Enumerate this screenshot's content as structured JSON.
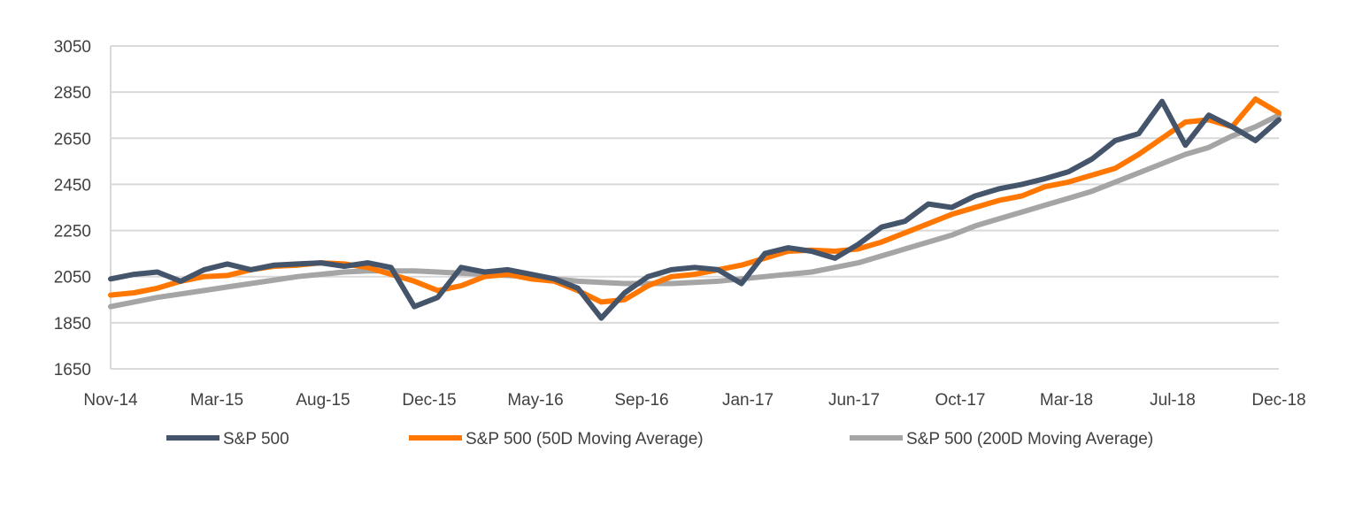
{
  "chart_data": {
    "type": "line",
    "title": "",
    "xlabel": "",
    "ylabel": "",
    "ylim": [
      1650,
      3050
    ],
    "yticks": [
      "3050",
      "2850",
      "2650",
      "2450",
      "2250",
      "2050",
      "1850",
      "1650"
    ],
    "xticks": [
      "Nov-14",
      "Mar-15",
      "Aug-15",
      "Dec-15",
      "May-16",
      "Sep-16",
      "Jan-17",
      "Jun-17",
      "Oct-17",
      "Mar-18",
      "Jul-18",
      "Dec-18"
    ],
    "grid": "horizontal",
    "legend_position": "bottom",
    "series": [
      {
        "name": "S&P 500",
        "color": "#44546a",
        "x": [
          0,
          1,
          2,
          3,
          4,
          5,
          6,
          7,
          8,
          9,
          10,
          11,
          12,
          13,
          14,
          15,
          16,
          17,
          18,
          19,
          20,
          21,
          22,
          23,
          24,
          25,
          26,
          27,
          28,
          29,
          30,
          31,
          32,
          33,
          34,
          35,
          36,
          37,
          38,
          39,
          40,
          41,
          42,
          43,
          44,
          45,
          46,
          47,
          48,
          49,
          50
        ],
        "values": [
          2040,
          2060,
          2070,
          2030,
          2080,
          2105,
          2080,
          2100,
          2105,
          2110,
          2095,
          2110,
          2090,
          1920,
          1960,
          2090,
          2070,
          2080,
          2060,
          2040,
          2000,
          1870,
          1980,
          2050,
          2080,
          2090,
          2080,
          2020,
          2150,
          2175,
          2160,
          2130,
          2190,
          2265,
          2290,
          2365,
          2350,
          2400,
          2430,
          2450,
          2475,
          2505,
          2560,
          2640,
          2670,
          2810,
          2620,
          2750,
          2700,
          2640,
          2730
        ]
      },
      {
        "name": "S&P 500 (50D Moving Average)",
        "color": "#ff7700",
        "x": [
          0,
          1,
          2,
          3,
          4,
          5,
          6,
          7,
          8,
          9,
          10,
          11,
          12,
          13,
          14,
          15,
          16,
          17,
          18,
          19,
          20,
          21,
          22,
          23,
          24,
          25,
          26,
          27,
          28,
          29,
          30,
          31,
          32,
          33,
          34,
          35,
          36,
          37,
          38,
          39,
          40,
          41,
          42,
          43,
          44,
          45,
          46,
          47,
          48,
          49,
          50
        ],
        "values": [
          1970,
          1980,
          2000,
          2030,
          2050,
          2055,
          2080,
          2095,
          2100,
          2110,
          2105,
          2090,
          2060,
          2030,
          1990,
          2010,
          2050,
          2060,
          2040,
          2030,
          1990,
          1940,
          1950,
          2010,
          2050,
          2060,
          2080,
          2100,
          2130,
          2160,
          2165,
          2160,
          2170,
          2200,
          2240,
          2280,
          2320,
          2350,
          2380,
          2400,
          2440,
          2460,
          2490,
          2520,
          2580,
          2650,
          2720,
          2730,
          2700,
          2820,
          2760
        ]
      },
      {
        "name": "S&P 500 (200D Moving Average)",
        "color": "#a5a5a5",
        "x": [
          0,
          1,
          2,
          3,
          4,
          5,
          6,
          7,
          8,
          9,
          10,
          11,
          12,
          13,
          14,
          15,
          16,
          17,
          18,
          19,
          20,
          21,
          22,
          23,
          24,
          25,
          26,
          27,
          28,
          29,
          30,
          31,
          32,
          33,
          34,
          35,
          36,
          37,
          38,
          39,
          40,
          41,
          42,
          43,
          44,
          45,
          46,
          47,
          48,
          49,
          50
        ],
        "values": [
          1920,
          1940,
          1960,
          1975,
          1990,
          2005,
          2020,
          2035,
          2050,
          2060,
          2070,
          2075,
          2075,
          2075,
          2070,
          2065,
          2060,
          2055,
          2050,
          2040,
          2030,
          2025,
          2020,
          2020,
          2020,
          2025,
          2030,
          2040,
          2050,
          2060,
          2070,
          2090,
          2110,
          2140,
          2170,
          2200,
          2230,
          2270,
          2300,
          2330,
          2360,
          2390,
          2420,
          2460,
          2500,
          2540,
          2580,
          2610,
          2660,
          2700,
          2750
        ]
      }
    ]
  }
}
